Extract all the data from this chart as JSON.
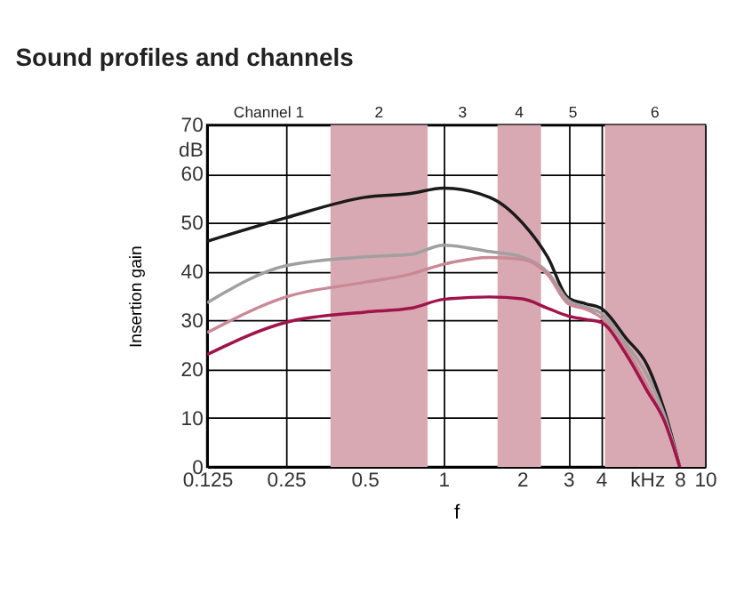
{
  "chart_data": {
    "type": "line",
    "title": "Sound profiles and channels",
    "xlabel": "f",
    "ylabel": "Insertion gain",
    "x": [
      0.125,
      0.25,
      0.5,
      0.75,
      1,
      1.5,
      2,
      2.5,
      3,
      3.5,
      4,
      5,
      6,
      7,
      8
    ],
    "series": [
      {
        "color": "#1a1a1a",
        "values": [
          46.2,
          51,
          55.2,
          56,
          57.1,
          55.2,
          50,
          43,
          34.6,
          33.4,
          32.5,
          26.3,
          20.9,
          11.4,
          0
        ]
      },
      {
        "color": "#a0a0a0",
        "values": [
          33.6,
          41.2,
          43,
          43.5,
          45.4,
          44.1,
          43,
          39.9,
          34.1,
          32.7,
          31.5,
          25.1,
          18.8,
          10.5,
          0
        ]
      },
      {
        "color": "#c98a96",
        "values": [
          27.5,
          34.8,
          37.8,
          39.5,
          41.5,
          42.9,
          42.5,
          39.4,
          33.4,
          32.3,
          30.6,
          24.1,
          16.7,
          9.3,
          0
        ]
      },
      {
        "color": "#a0144a",
        "values": [
          23,
          29.6,
          31.7,
          32.5,
          34.3,
          34.8,
          34.4,
          32.5,
          30.9,
          30.2,
          29.6,
          23,
          15.6,
          9.3,
          0
        ]
      }
    ],
    "log": "x",
    "xlim": [
      0.125,
      10
    ],
    "xticks": [
      0.125,
      0.25,
      0.5,
      1,
      2,
      3,
      4,
      {
        "value": 6,
        "label": "kHz"
      },
      8,
      10
    ],
    "ylim": [
      0,
      70
    ],
    "yticks": [
      0,
      10,
      20,
      30,
      40,
      50,
      60,
      {
        "value": 65,
        "label": "dB"
      },
      70
    ],
    "bands": [
      {
        "axis": "x",
        "from": 0.37,
        "to": 0.87,
        "color": "#d9a9b3"
      },
      {
        "axis": "x",
        "from": 1.61,
        "to": 2.36,
        "color": "#d9a9b3"
      },
      {
        "axis": "x",
        "from": 4.14,
        "to": 10,
        "color": "#d9a9b3"
      }
    ],
    "annotations": [
      "Channel 1",
      "2",
      "3",
      "4",
      "5",
      "6"
    ],
    "grid": true,
    "marker": "none",
    "line_style": "solid"
  }
}
